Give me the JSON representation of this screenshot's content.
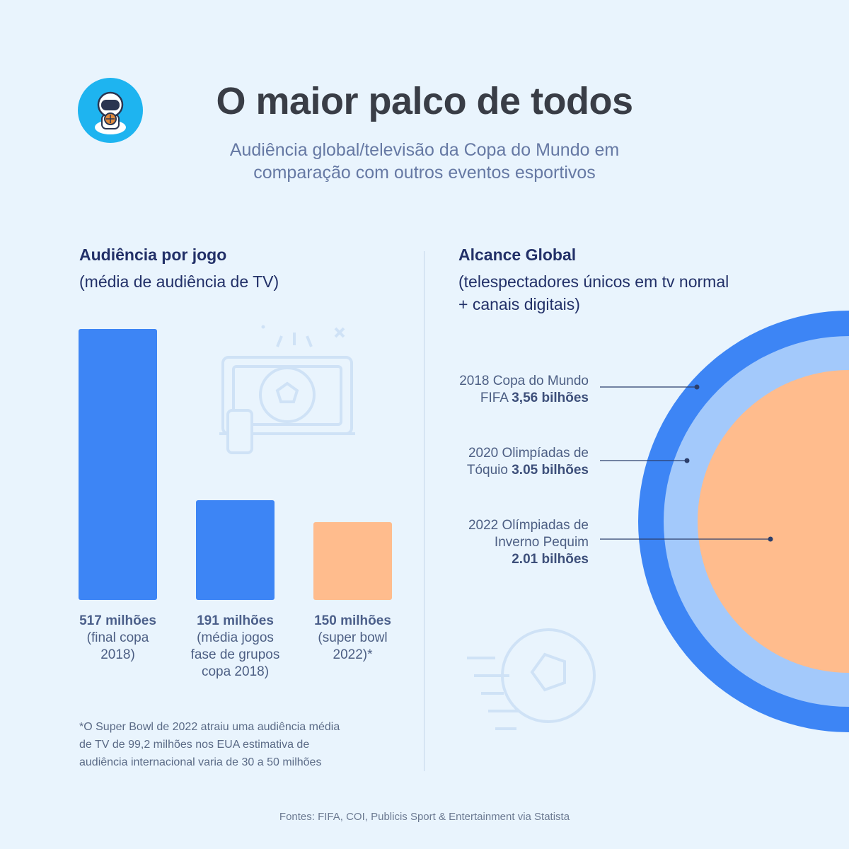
{
  "header": {
    "title": "O maior palco de todos",
    "subtitle_line1": "Audiência global/televisão da Copa do Mundo em",
    "subtitle_line2": "comparação com outros eventos esportivos"
  },
  "left": {
    "title": "Audiência por jogo",
    "subtitle": "(média de audiência de TV)"
  },
  "right": {
    "title": "Alcance Global",
    "subtitle_line1": "(telespectadores únicos em tv normal",
    "subtitle_line2": "+ canais digitais)"
  },
  "footnote": {
    "line1": "*O Super Bowl de 2022 atraiu uma audiência média",
    "line2": "de TV de 99,2 milhões nos EUA estimativa de",
    "line3": "audiência internacional varia de 30 a 50 milhões"
  },
  "source": "Fontes: FIFA, COI, Publicis Sport & Entertainment via Statista",
  "colors": {
    "blue": "#3d85f5",
    "light_blue": "#a3c9fb",
    "peach": "#ffbc8d",
    "background": "#e9f4fd"
  },
  "chart_data": [
    {
      "type": "bar",
      "title": "Audiência por jogo",
      "subtitle": "(média de audiência de TV)",
      "unit": "milhões",
      "categories": [
        "final copa 2018",
        "média jogos fase de grupos copa 2018",
        "super bowl 2022"
      ],
      "values": [
        517,
        191,
        150
      ],
      "bars": [
        {
          "value": 517,
          "value_label": "517 milhões",
          "desc_lines": [
            "(final copa",
            "2018)"
          ],
          "color": "#3d85f5"
        },
        {
          "value": 191,
          "value_label": "191 milhões",
          "desc_lines": [
            "(média jogos",
            "fase de grupos",
            "copa 2018)"
          ],
          "color": "#3d85f5"
        },
        {
          "value": 150,
          "value_label": "150 milhões",
          "desc_lines": [
            "(super bowl",
            "2022)*"
          ],
          "color": "#ffbc8d"
        }
      ]
    },
    {
      "type": "pie",
      "title": "Alcance Global",
      "subtitle": "(telespectadores únicos em tv normal + canais digitais)",
      "unit": "bilhões",
      "categories": [
        "2018 Copa do Mundo FIFA",
        "2020 Olimpíadas de Tóquio",
        "2022 Olímpiadas de Inverno Pequim"
      ],
      "values": [
        3.56,
        3.05,
        2.01
      ],
      "rings": [
        {
          "value": 3.56,
          "lines": [
            "2018 Copa do Mundo",
            "FIFA "
          ],
          "value_label": "3,56 bilhões",
          "color": "#3d85f5"
        },
        {
          "value": 3.05,
          "lines": [
            "2020 Olimpíadas de",
            "Tóquio "
          ],
          "value_label": "3.05 bilhões",
          "color": "#a3c9fb"
        },
        {
          "value": 2.01,
          "lines": [
            "2022 Olímpiadas de",
            "Inverno Pequim",
            ""
          ],
          "value_label": "2.01 bilhões",
          "color": "#ffbc8d"
        }
      ]
    }
  ]
}
